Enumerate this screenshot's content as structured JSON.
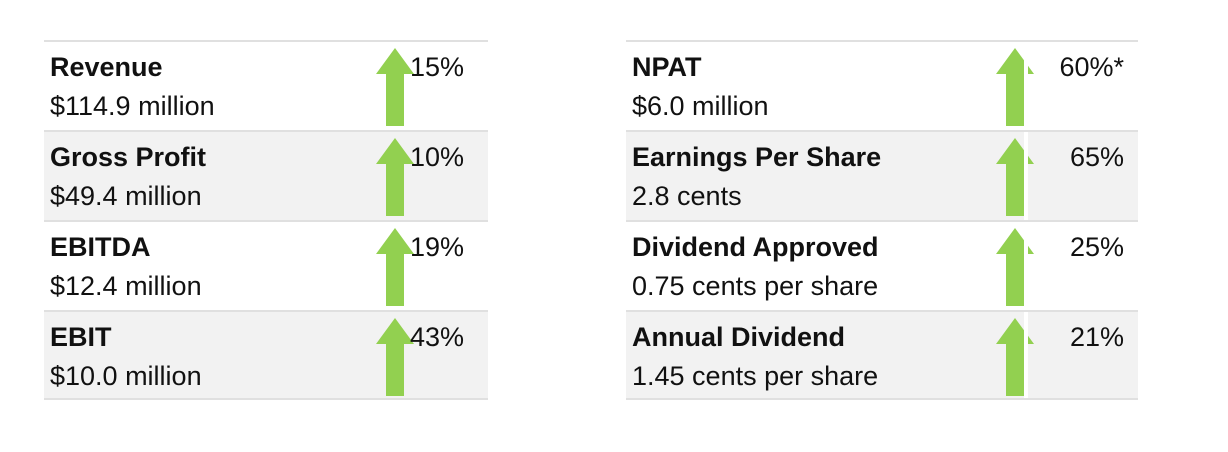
{
  "colors": {
    "arrow": "#92d050",
    "row_shade": "#f2f2f2",
    "rule": "#e0e0e0"
  },
  "left": [
    {
      "label": "Revenue",
      "value": "$114.9 million",
      "change": "15%",
      "icon": "up-arrow-icon"
    },
    {
      "label": "Gross Profit",
      "value": "$49.4 million",
      "change": "10%",
      "icon": "up-arrow-icon"
    },
    {
      "label": "EBITDA",
      "value": "$12.4 million",
      "change": "19%",
      "icon": "up-arrow-icon"
    },
    {
      "label": "EBIT",
      "value": "$10.0 million",
      "change": "43%",
      "icon": "up-arrow-icon"
    }
  ],
  "right": [
    {
      "label": "NPAT",
      "value": "$6.0 million",
      "change": "60%*",
      "icon": "up-arrow-icon"
    },
    {
      "label": "Earnings Per Share",
      "value": "2.8 cents",
      "change": "65%",
      "icon": "up-arrow-icon"
    },
    {
      "label": "Dividend Approved",
      "value": "0.75 cents per share",
      "change": "25%",
      "icon": "up-arrow-icon"
    },
    {
      "label": "Annual Dividend",
      "value": "1.45 cents per share",
      "change": "21%",
      "icon": "up-arrow-icon"
    }
  ]
}
